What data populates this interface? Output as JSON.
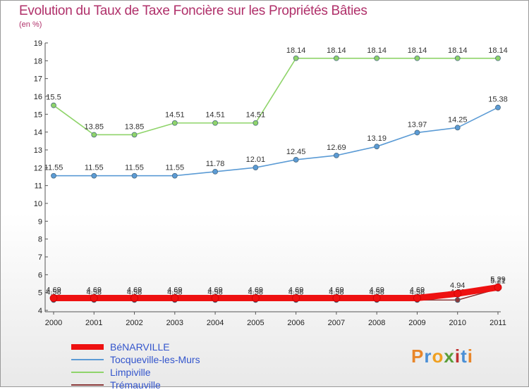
{
  "title": "Evolution du Taux de Taxe Foncière sur les Propriétés Bâties",
  "unit_label": "(en %)",
  "logo": {
    "text": "Proxiti",
    "letters": [
      {
        "ch": "P",
        "color": "#e8862a"
      },
      {
        "ch": "r",
        "color": "#4a8fd6"
      },
      {
        "ch": "o",
        "color": "#f0a020"
      },
      {
        "ch": "x",
        "color": "#5a9e3a"
      },
      {
        "ch": "i",
        "color": "#c03030"
      },
      {
        "ch": "t",
        "color": "#4a8fd6"
      },
      {
        "ch": "i",
        "color": "#e8862a"
      }
    ]
  },
  "chart_data": {
    "type": "line",
    "title": "Evolution du Taux de Taxe Foncière sur les Propriétés Bâties",
    "ylabel": "(en %)",
    "xlabel": "",
    "categories": [
      "2000",
      "2001",
      "2002",
      "2003",
      "2004",
      "2005",
      "2006",
      "2007",
      "2008",
      "2009",
      "2010",
      "2011"
    ],
    "ylim": [
      4,
      19
    ],
    "yticks": [
      4,
      5,
      6,
      7,
      8,
      9,
      10,
      11,
      12,
      13,
      14,
      15,
      16,
      17,
      18,
      19
    ],
    "grid": false,
    "legend_position": "bottom-left",
    "series": [
      {
        "name": "BéNARVILLE",
        "color": "#ee1111",
        "width": "thick",
        "values": [
          4.69,
          4.69,
          4.69,
          4.69,
          4.69,
          4.69,
          4.69,
          4.69,
          4.69,
          4.69,
          4.94,
          5.29
        ],
        "labels": [
          "4.69",
          "4.69",
          "4.69",
          "4.69",
          "4.69",
          "4.69",
          "4.69",
          "4.69",
          "4.69",
          "4.69",
          "4.94",
          "5.29"
        ]
      },
      {
        "name": "Tocqueville-les-Murs",
        "color": "#5b9bd5",
        "width": "thin",
        "values": [
          11.55,
          11.55,
          11.55,
          11.55,
          11.78,
          12.01,
          12.45,
          12.69,
          13.19,
          13.97,
          14.25,
          15.38
        ],
        "labels": [
          "11.55",
          "11.55",
          "11.55",
          "11.55",
          "11.78",
          "12.01",
          "12.45",
          "12.69",
          "13.19",
          "13.97",
          "14.25",
          "15.38"
        ]
      },
      {
        "name": "Limpiville",
        "color": "#8fd46a",
        "width": "thin",
        "values": [
          15.5,
          13.85,
          13.85,
          14.51,
          14.51,
          14.51,
          18.14,
          18.14,
          18.14,
          18.14,
          18.14,
          18.14
        ],
        "labels": [
          "15.5",
          "13.85",
          "13.85",
          "14.51",
          "14.51",
          "14.51",
          "18.14",
          "18.14",
          "18.14",
          "18.14",
          "18.14",
          "18.14"
        ]
      },
      {
        "name": "Trémauville",
        "color": "#8b3a3a",
        "width": "thin",
        "values": [
          4.58,
          4.58,
          4.58,
          4.58,
          4.58,
          4.58,
          4.58,
          4.58,
          4.58,
          4.58,
          4.58,
          5.21
        ],
        "labels": [
          "4.58",
          "4.58",
          "4.58",
          "4.58",
          "4.58",
          "4.58",
          "4.58",
          "4.58",
          "4.58",
          "4.58",
          "4.58",
          "5.21"
        ]
      }
    ]
  }
}
